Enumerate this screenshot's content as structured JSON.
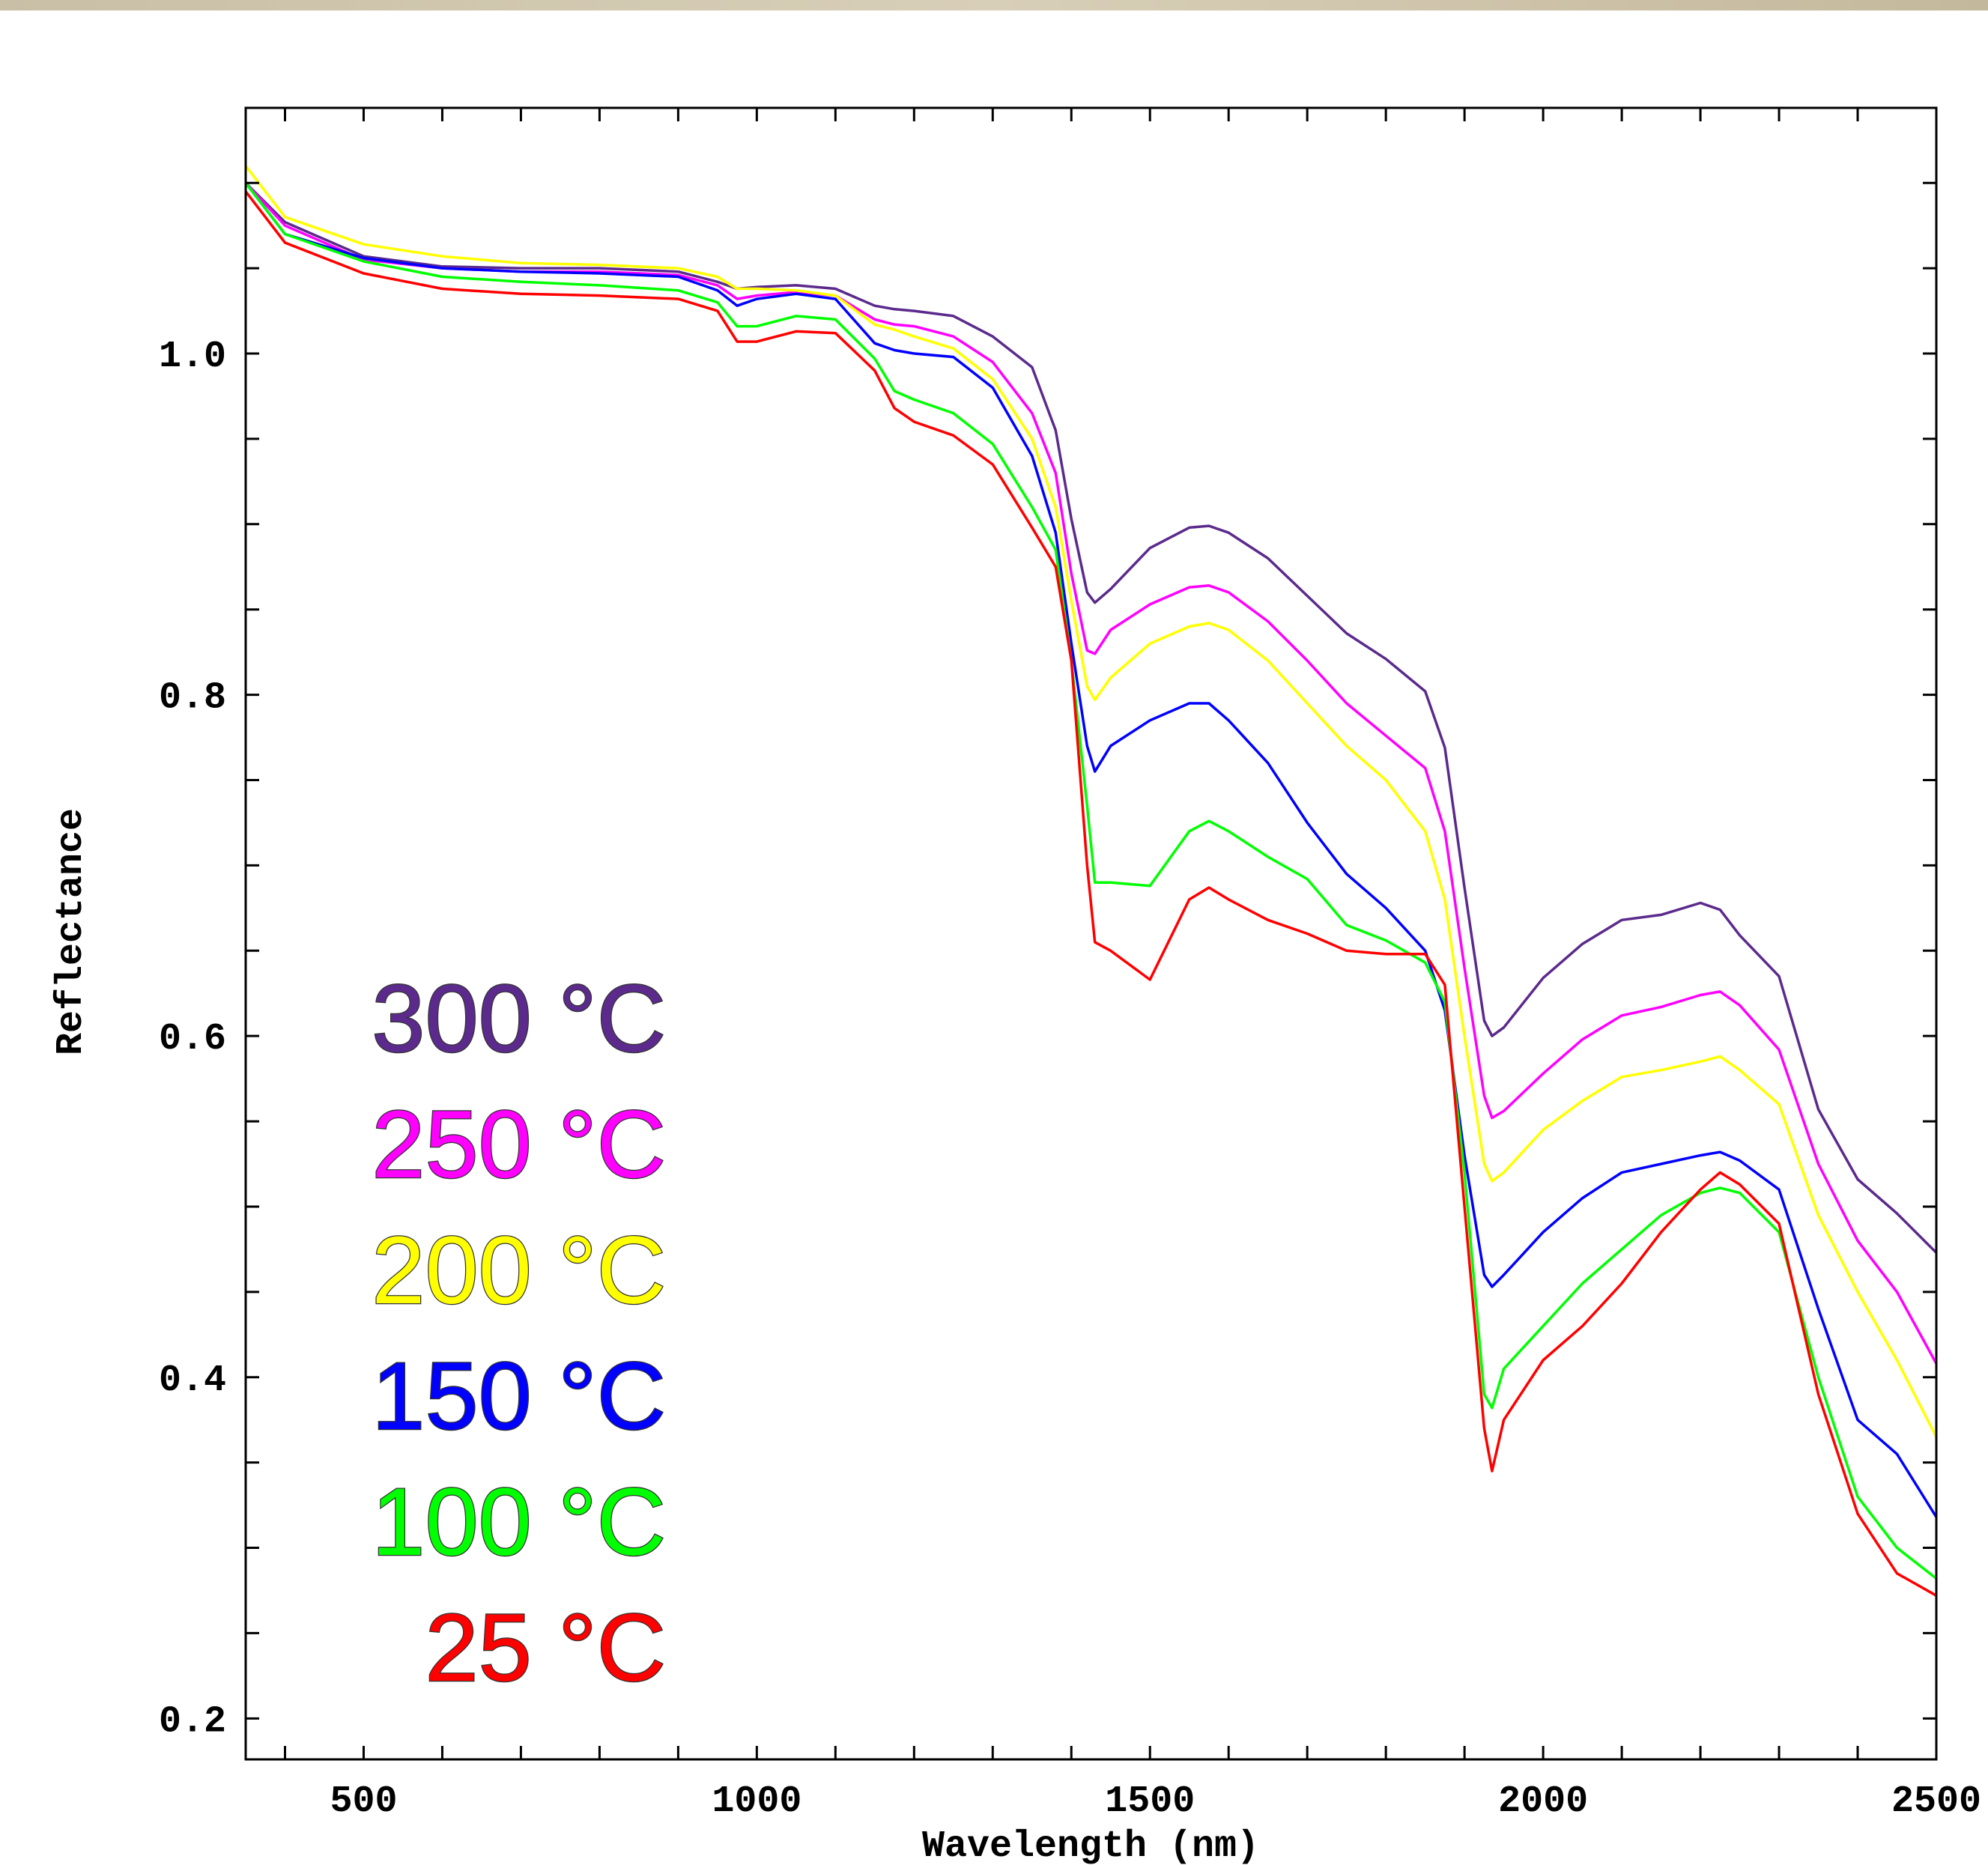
{
  "chart_data": {
    "type": "line",
    "x_label": "Wavelength (nm)",
    "y_label": "Reflectance",
    "xlim": [
      350,
      2500
    ],
    "ylim": [
      0.176,
      1.144
    ],
    "xticks": [
      500,
      1000,
      1500,
      2000,
      2500
    ],
    "yticks": [
      0.2,
      0.4,
      0.6,
      0.8,
      {
        "value": 1.0,
        "label": "1.0"
      }
    ],
    "xminorticks": [
      400,
      600,
      700,
      800,
      900,
      1100,
      1200,
      1300,
      1400,
      1600,
      1700,
      1800,
      1900,
      2100,
      2200,
      2300,
      2400
    ],
    "yminorticks": [
      0.25,
      0.3,
      0.35,
      0.45,
      0.5,
      0.55,
      0.65,
      0.7,
      0.75,
      0.85,
      0.9,
      0.95,
      1.05,
      1.1
    ],
    "legend": "lower left",
    "x": [
      350,
      400,
      500,
      600,
      700,
      800,
      900,
      950,
      975,
      1000,
      1050,
      1100,
      1150,
      1175,
      1200,
      1250,
      1300,
      1350,
      1380,
      1400,
      1420,
      1430,
      1450,
      1500,
      1550,
      1575,
      1600,
      1650,
      1700,
      1750,
      1800,
      1850,
      1875,
      1900,
      1925,
      1935,
      1950,
      2000,
      2050,
      2100,
      2150,
      2200,
      2225,
      2250,
      2300,
      2350,
      2400,
      2450,
      2500
    ],
    "series": [
      {
        "name": "300 °C",
        "color": "#5b2a8c",
        "values": [
          1.1,
          1.077,
          1.057,
          1.051,
          1.05,
          1.05,
          1.048,
          1.042,
          1.038,
          1.039,
          1.04,
          1.038,
          1.028,
          1.026,
          1.025,
          1.022,
          1.01,
          0.992,
          0.955,
          0.903,
          0.86,
          0.854,
          0.862,
          0.886,
          0.898,
          0.899,
          0.895,
          0.88,
          0.858,
          0.836,
          0.821,
          0.802,
          0.769,
          0.687,
          0.609,
          0.6,
          0.605,
          0.634,
          0.654,
          0.668,
          0.671,
          0.678,
          0.674,
          0.659,
          0.635,
          0.557,
          0.516,
          0.496,
          0.473
        ]
      },
      {
        "name": "250 °C",
        "color": "#ff00ff",
        "values": [
          1.1,
          1.075,
          1.055,
          1.05,
          1.048,
          1.048,
          1.046,
          1.04,
          1.032,
          1.034,
          1.036,
          1.034,
          1.02,
          1.017,
          1.016,
          1.01,
          0.995,
          0.965,
          0.93,
          0.871,
          0.826,
          0.824,
          0.838,
          0.853,
          0.863,
          0.864,
          0.86,
          0.843,
          0.82,
          0.795,
          0.776,
          0.757,
          0.72,
          0.64,
          0.565,
          0.552,
          0.556,
          0.578,
          0.598,
          0.612,
          0.617,
          0.624,
          0.626,
          0.618,
          0.592,
          0.525,
          0.48,
          0.45,
          0.408
        ]
      },
      {
        "name": "200 °C",
        "color": "#ffff00",
        "values": [
          1.11,
          1.08,
          1.064,
          1.057,
          1.053,
          1.052,
          1.05,
          1.045,
          1.038,
          1.038,
          1.037,
          1.034,
          1.017,
          1.014,
          1.01,
          1.003,
          0.985,
          0.95,
          0.91,
          0.855,
          0.805,
          0.797,
          0.81,
          0.83,
          0.84,
          0.842,
          0.838,
          0.82,
          0.795,
          0.77,
          0.75,
          0.72,
          0.68,
          0.6,
          0.525,
          0.515,
          0.52,
          0.545,
          0.562,
          0.576,
          0.58,
          0.585,
          0.588,
          0.58,
          0.56,
          0.495,
          0.45,
          0.41,
          0.365
        ]
      },
      {
        "name": "150 °C",
        "color": "#0000ff",
        "values": [
          1.1,
          1.07,
          1.056,
          1.05,
          1.048,
          1.047,
          1.045,
          1.037,
          1.028,
          1.032,
          1.035,
          1.032,
          1.006,
          1.002,
          1.0,
          0.998,
          0.98,
          0.94,
          0.895,
          0.83,
          0.77,
          0.755,
          0.77,
          0.785,
          0.795,
          0.795,
          0.785,
          0.76,
          0.725,
          0.695,
          0.675,
          0.65,
          0.615,
          0.53,
          0.46,
          0.453,
          0.46,
          0.485,
          0.505,
          0.52,
          0.525,
          0.53,
          0.532,
          0.527,
          0.51,
          0.44,
          0.375,
          0.355,
          0.318
        ]
      },
      {
        "name": "100 °C",
        "color": "#00ff00",
        "values": [
          1.1,
          1.07,
          1.054,
          1.045,
          1.042,
          1.04,
          1.037,
          1.03,
          1.016,
          1.016,
          1.022,
          1.02,
          0.997,
          0.978,
          0.973,
          0.965,
          0.947,
          0.91,
          0.885,
          0.82,
          0.735,
          0.69,
          0.69,
          0.688,
          0.72,
          0.726,
          0.72,
          0.705,
          0.692,
          0.665,
          0.656,
          0.643,
          0.62,
          0.52,
          0.39,
          0.382,
          0.405,
          0.43,
          0.455,
          0.475,
          0.495,
          0.508,
          0.511,
          0.508,
          0.485,
          0.4,
          0.33,
          0.3,
          0.282
        ]
      },
      {
        "name": "25 °C",
        "color": "#ff0000",
        "values": [
          1.095,
          1.065,
          1.047,
          1.038,
          1.035,
          1.034,
          1.032,
          1.025,
          1.007,
          1.007,
          1.013,
          1.012,
          0.99,
          0.968,
          0.96,
          0.952,
          0.935,
          0.898,
          0.875,
          0.82,
          0.7,
          0.655,
          0.65,
          0.633,
          0.68,
          0.687,
          0.68,
          0.668,
          0.66,
          0.65,
          0.648,
          0.648,
          0.63,
          0.5,
          0.37,
          0.345,
          0.375,
          0.41,
          0.43,
          0.455,
          0.485,
          0.51,
          0.52,
          0.513,
          0.49,
          0.39,
          0.32,
          0.285,
          0.272
        ]
      }
    ]
  }
}
